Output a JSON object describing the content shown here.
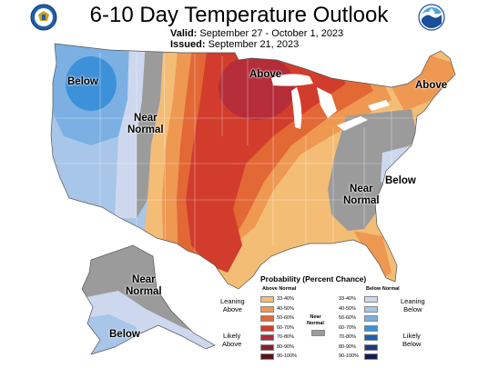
{
  "header": {
    "title": "6-10 Day Temperature Outlook",
    "valid_label": "Valid:",
    "valid_value": "September 27 - October 1, 2023",
    "issued_label": "Issued:",
    "issued_value": "September 21, 2023"
  },
  "logos": [
    {
      "name": "doc-seal-logo",
      "color": "#1f5fa8"
    },
    {
      "name": "noaa-logo",
      "color": "#1a4f9c"
    }
  ],
  "colors": {
    "above_33_40": "#f4bd75",
    "above_40_50": "#ee9852",
    "above_50_60": "#e26836",
    "above_60_70": "#d13c2c",
    "above_70_80": "#b02a3c",
    "above_80_90": "#8a1f2c",
    "above_90_100": "#5c1018",
    "near_normal": "#9b9b9b",
    "below_33_40": "#cdd8ee",
    "below_40_50": "#a8c6e8",
    "below_50_60": "#7cb0e3",
    "below_60_70": "#3d91d9",
    "below_70_80": "#1d5fb0",
    "below_80_90": "#1c3a82",
    "below_90_100": "#141a55"
  },
  "map_labels": {
    "west_below": "Below",
    "central_near": "Near\nNormal",
    "midwest_above": "Above",
    "northeast_above": "Above",
    "southeast_near": "Near\nNormal",
    "southeast_below": "Below",
    "alaska_near": "Near\nNormal",
    "alaska_below": "Below"
  },
  "legend": {
    "title": "Probability (Percent Chance)",
    "above_header": "Above Normal",
    "below_header": "Below Normal",
    "near_label": "Near\nNormal",
    "leaning_above": "Leaning\nAbove",
    "likely_above": "Likely\nAbove",
    "leaning_below": "Leaning\nBelow",
    "likely_below": "Likely\nBelow",
    "ranges": [
      "33-40%",
      "40-50%",
      "50-60%",
      "60-70%",
      "70-80%",
      "80-90%",
      "90-100%"
    ]
  }
}
